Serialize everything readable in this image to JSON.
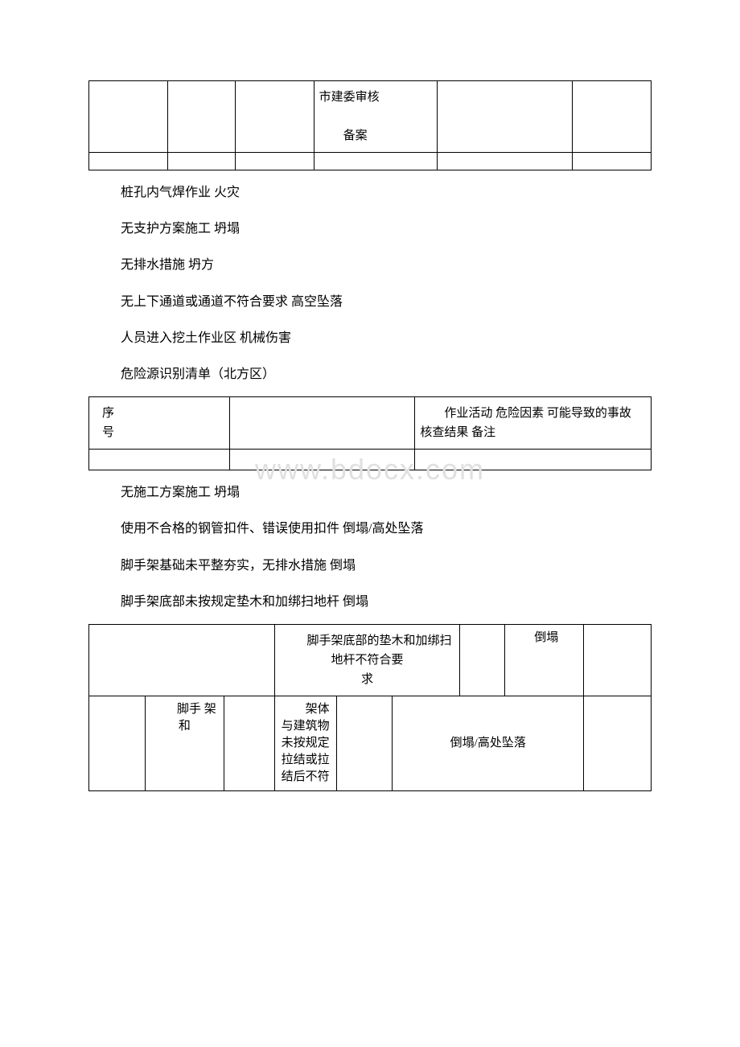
{
  "colors": {
    "text": "#000000",
    "border": "#000000",
    "background": "#ffffff",
    "watermark": "#e0e0e0"
  },
  "typography": {
    "body_font": "SimSun",
    "body_size_pt": 12,
    "watermark_size_pt": 28
  },
  "table1": {
    "rows": [
      {
        "c1": "",
        "c2": "",
        "c3": "",
        "c4": "市建委审核\n\n　　备案",
        "c5": "",
        "c6": ""
      },
      {
        "c1": "",
        "c2": "",
        "c3": "",
        "c4": "",
        "c5": "",
        "c6": ""
      }
    ]
  },
  "paragraphs_a": [
    "桩孔内气焊作业 火灾",
    "无支护方案施工 坍塌",
    "无排水措施 坍方",
    "无上下通道或通道不符合要求 高空坠落",
    "人员进入挖土作业区 机械伤害",
    "危险源识别清单（北方区）"
  ],
  "table2": {
    "header": {
      "c1_line1": "序",
      "c1_line2": "号",
      "c2": "",
      "c3": "　　作业活动 危险因素 可能导致的事故 核查结果 备注"
    }
  },
  "watermark": "www.bdocx.com",
  "paragraphs_b": [
    "无施工方案施工 坍塌",
    "使用不合格的钢管扣件、错误使用扣件 倒塌/高处坠落",
    "脚手架基础未平整夯实，无排水措施 倒塌",
    "脚手架底部未按规定垫木和加绑扫地杆 倒塌"
  ],
  "table3": {
    "row1": {
      "c1": "",
      "c2": "　　脚手架底部的垫木和加绑扫地杆不符合要\n求",
      "c3": "",
      "c4": "　　倒塌",
      "c5": ""
    },
    "row2": {
      "c1": "",
      "c2": "　　脚手 架 和",
      "c3": "",
      "c4": "　　架体与建筑物未按规定拉结或拉结后不符",
      "c5": "",
      "c6": "倒塌/高处坠落",
      "c7": ""
    }
  }
}
